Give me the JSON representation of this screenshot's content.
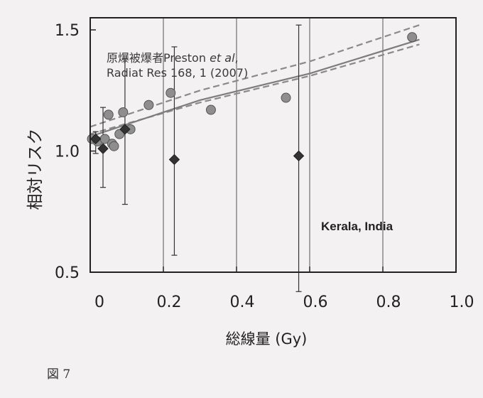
{
  "figure_label": "図 7",
  "chart_data": {
    "type": "scatter",
    "xlabel": "総線量 (Gy)",
    "ylabel": "相対リスク",
    "xlim": [
      0,
      1.0
    ],
    "ylim": [
      0.5,
      1.55
    ],
    "x_ticks": [
      {
        "value": 0,
        "label": "0"
      },
      {
        "value": 0.2,
        "label": "0.2"
      },
      {
        "value": 0.4,
        "label": "0.4"
      },
      {
        "value": 0.6,
        "label": "0.6"
      },
      {
        "value": 0.8,
        "label": "0.8"
      },
      {
        "value": 1.0,
        "label": "1.0"
      }
    ],
    "y_ticks": [
      {
        "value": 0.5,
        "label": "0.5"
      },
      {
        "value": 1.0,
        "label": "1.0"
      },
      {
        "value": 1.5,
        "label": "1.5"
      }
    ],
    "grid": "vertical",
    "annotations": [
      {
        "lines": [
          "原爆被爆者Preston ",
          "et al",
          ","
        ],
        "line2": "Radiat Res 168, 1 (2007)"
      },
      {
        "text": "Kerala, India"
      }
    ],
    "series": [
      {
        "marker": "circle",
        "color": "#8e8e8e",
        "x": [
          0.005,
          0.02,
          0.04,
          0.05,
          0.06,
          0.065,
          0.08,
          0.09,
          0.11,
          0.16,
          0.22,
          0.33,
          0.535,
          0.88
        ],
        "y": [
          1.05,
          1.04,
          1.05,
          1.15,
          1.03,
          1.02,
          1.07,
          1.16,
          1.09,
          1.19,
          1.24,
          1.17,
          1.22,
          1.47
        ]
      },
      {
        "marker": "diamond",
        "color": "#333333",
        "x": [
          0.015,
          0.035,
          0.095,
          0.23,
          0.57
        ],
        "y": [
          1.05,
          1.01,
          1.09,
          0.965,
          0.98
        ],
        "err_low": [
          0.99,
          0.85,
          0.78,
          0.57,
          0.42
        ],
        "err_high": [
          1.08,
          1.18,
          1.38,
          1.43,
          1.52
        ]
      }
    ],
    "fit_line": {
      "x": [
        0.0,
        0.3,
        0.6,
        0.9
      ],
      "y": [
        1.06,
        1.21,
        1.32,
        1.46
      ]
    },
    "fit_band": {
      "x": [
        0.0,
        0.3,
        0.6,
        0.9
      ],
      "upper": [
        1.1,
        1.25,
        1.37,
        1.52
      ],
      "lower": [
        1.07,
        1.2,
        1.31,
        1.44
      ]
    }
  }
}
